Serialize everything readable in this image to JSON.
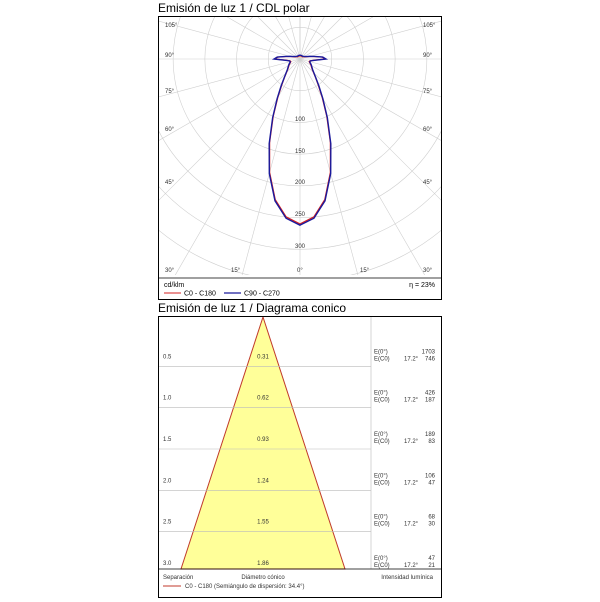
{
  "chart_data": [
    {
      "type": "polar",
      "title": "Emisión de luz 1 / CDL polar",
      "angle_labels_left": [
        "105°",
        "90°",
        "75°",
        "60°",
        "45°"
      ],
      "angle_labels_right": [
        "105°",
        "90°",
        "75°",
        "60°",
        "45°"
      ],
      "bottom_labels": [
        "30°",
        "15°",
        "0°",
        "15°",
        "30°"
      ],
      "radial_ticks": [
        "100",
        "150",
        "200",
        "250",
        "300"
      ],
      "unit": "cd/klm",
      "efficiency": "η = 23%",
      "rmax": 350,
      "series": [
        {
          "name": "C0 - C180",
          "color": "#d62020",
          "points": [
            [
              0,
              260
            ],
            [
              5,
              250
            ],
            [
              10,
              225
            ],
            [
              15,
              185
            ],
            [
              20,
              140
            ],
            [
              25,
              100
            ],
            [
              30,
              70
            ],
            [
              35,
              50
            ],
            [
              40,
              38
            ],
            [
              45,
              30
            ],
            [
              50,
              25
            ],
            [
              55,
              22
            ],
            [
              60,
              20
            ],
            [
              65,
              18
            ],
            [
              70,
              16
            ],
            [
              75,
              15
            ],
            [
              80,
              16
            ],
            [
              85,
              22
            ],
            [
              90,
              40
            ],
            [
              95,
              35
            ],
            [
              100,
              22
            ],
            [
              105,
              15
            ],
            [
              110,
              10
            ],
            [
              120,
              7
            ],
            [
              135,
              5
            ],
            [
              150,
              5
            ],
            [
              165,
              5
            ],
            [
              180,
              5
            ]
          ]
        },
        {
          "name": "C90 - C270",
          "color": "#1a1a9c",
          "points": [
            [
              0,
              262
            ],
            [
              5,
              252
            ],
            [
              10,
              227
            ],
            [
              15,
              187
            ],
            [
              20,
              142
            ],
            [
              25,
              102
            ],
            [
              30,
              72
            ],
            [
              35,
              52
            ],
            [
              40,
              39
            ],
            [
              45,
              31
            ],
            [
              50,
              26
            ],
            [
              55,
              23
            ],
            [
              60,
              21
            ],
            [
              65,
              19
            ],
            [
              70,
              17
            ],
            [
              75,
              16
            ],
            [
              80,
              17
            ],
            [
              85,
              23
            ],
            [
              90,
              41
            ],
            [
              95,
              36
            ],
            [
              100,
              23
            ],
            [
              105,
              16
            ],
            [
              110,
              11
            ],
            [
              120,
              8
            ],
            [
              135,
              6
            ],
            [
              150,
              6
            ],
            [
              165,
              6
            ],
            [
              180,
              6
            ]
          ]
        }
      ]
    },
    {
      "type": "cone",
      "title": "Emisión de luz 1 / Diagrama conico",
      "rows": [
        {
          "separation": "0.5",
          "diameter": "0.31",
          "e0": "1703",
          "ec0": "746"
        },
        {
          "separation": "1.0",
          "diameter": "0.62",
          "e0": "426",
          "ec0": "187"
        },
        {
          "separation": "1.5",
          "diameter": "0.93",
          "e0": "189",
          "ec0": "83"
        },
        {
          "separation": "2.0",
          "diameter": "1.24",
          "e0": "106",
          "ec0": "47"
        },
        {
          "separation": "2.5",
          "diameter": "1.55",
          "e0": "68",
          "ec0": "30"
        },
        {
          "separation": "3.0",
          "diameter": "1.86",
          "e0": "47",
          "ec0": "21"
        }
      ],
      "e0_label": "E(0°)",
      "ec0_label": "E(C0)",
      "angle": "17.2°",
      "footer_separation": "Separación",
      "footer_diameter": "Diámetro cónico",
      "footer_intensity": "Intensidad lumínica",
      "legend": "C0 - C180 (Semiángulo de dispersión: 34.4°)",
      "cone_fill": "#ffff99",
      "cone_stroke": "#c0392b"
    }
  ]
}
